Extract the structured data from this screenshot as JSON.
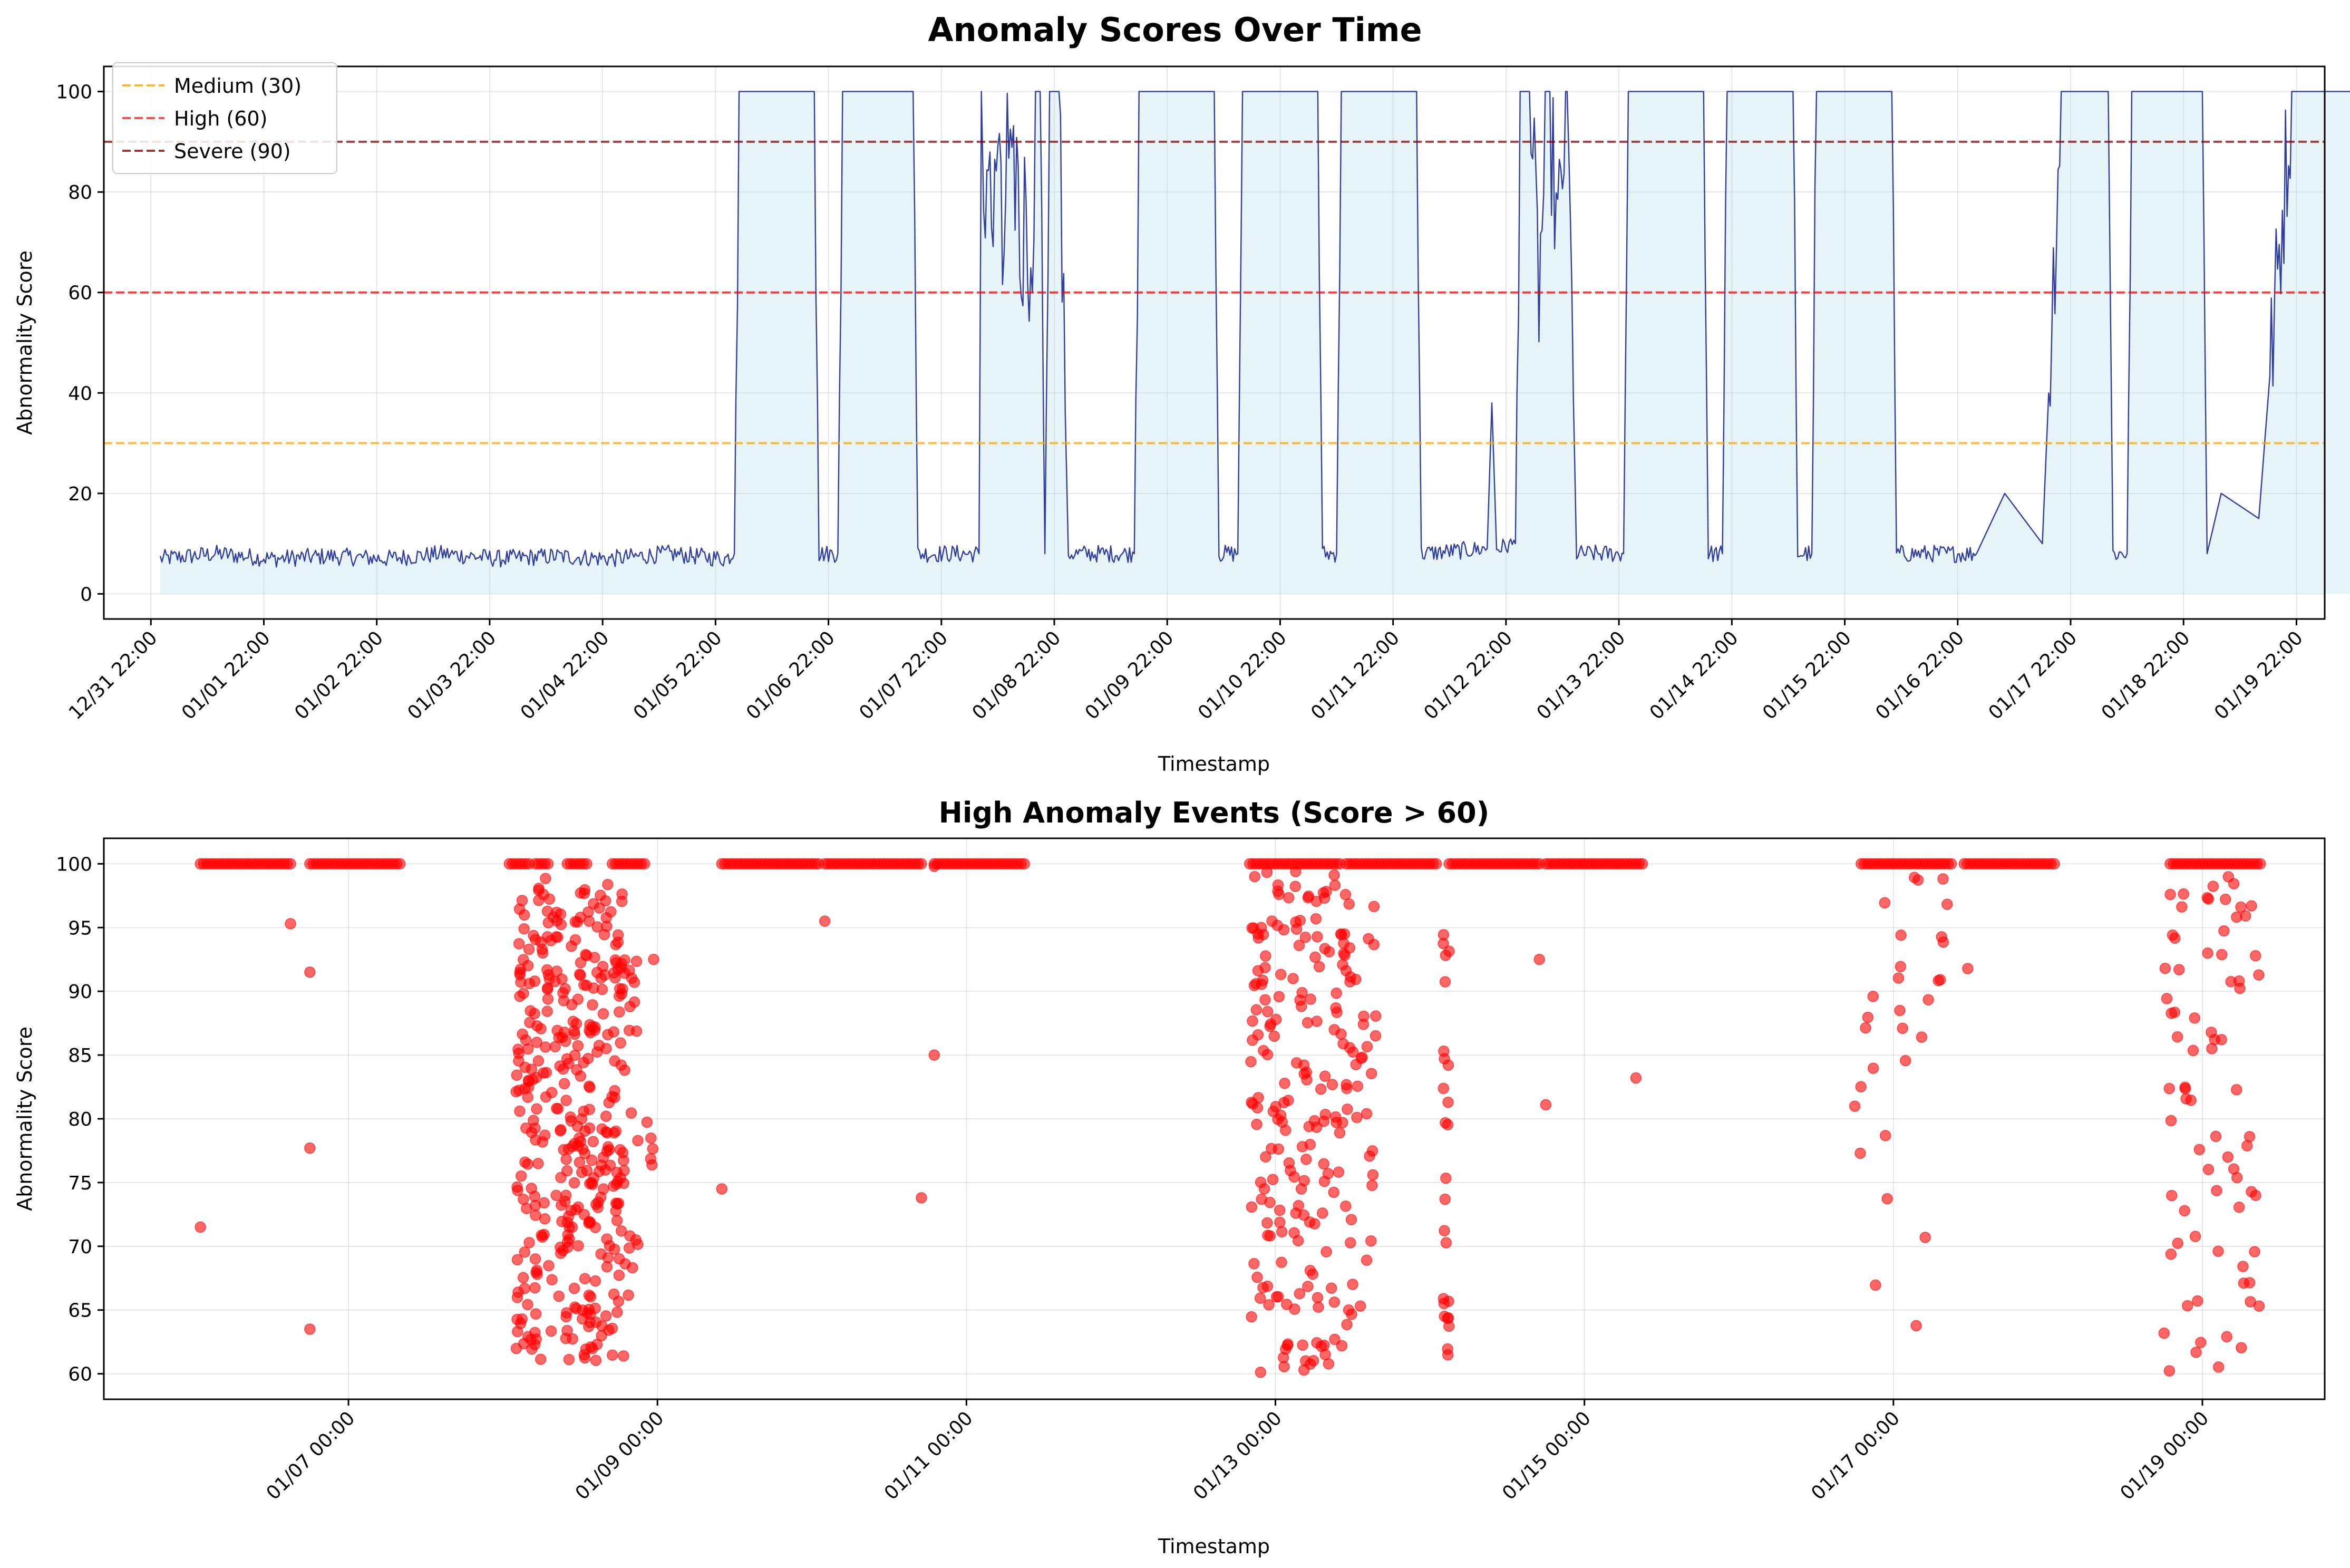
{
  "chart_data": [
    {
      "type": "line",
      "title": "Anomaly Scores Over Time",
      "xlabel": "Timestamp",
      "ylabel": "Abnormality Score",
      "x_range": [
        "2023-12-31 12:00",
        "2024-01-20 04:00"
      ],
      "ylim": [
        -5,
        105
      ],
      "y_ticks": [
        0,
        20,
        40,
        60,
        80,
        100
      ],
      "x_ticks": [
        {
          "t": "2023-12-31 22:00",
          "label": "12/31 22:00"
        },
        {
          "t": "2024-01-01 22:00",
          "label": "01/01 22:00"
        },
        {
          "t": "2024-01-02 22:00",
          "label": "01/02 22:00"
        },
        {
          "t": "2024-01-03 22:00",
          "label": "01/03 22:00"
        },
        {
          "t": "2024-01-04 22:00",
          "label": "01/04 22:00"
        },
        {
          "t": "2024-01-05 22:00",
          "label": "01/05 22:00"
        },
        {
          "t": "2024-01-06 22:00",
          "label": "01/06 22:00"
        },
        {
          "t": "2024-01-07 22:00",
          "label": "01/07 22:00"
        },
        {
          "t": "2024-01-08 22:00",
          "label": "01/08 22:00"
        },
        {
          "t": "2024-01-09 22:00",
          "label": "01/09 22:00"
        },
        {
          "t": "2024-01-10 22:00",
          "label": "01/10 22:00"
        },
        {
          "t": "2024-01-11 22:00",
          "label": "01/11 22:00"
        },
        {
          "t": "2024-01-12 22:00",
          "label": "01/12 22:00"
        },
        {
          "t": "2024-01-13 22:00",
          "label": "01/13 22:00"
        },
        {
          "t": "2024-01-14 22:00",
          "label": "01/14 22:00"
        },
        {
          "t": "2024-01-15 22:00",
          "label": "01/15 22:00"
        },
        {
          "t": "2024-01-16 22:00",
          "label": "01/16 22:00"
        },
        {
          "t": "2024-01-17 22:00",
          "label": "01/17 22:00"
        },
        {
          "t": "2024-01-18 22:00",
          "label": "01/18 22:00"
        },
        {
          "t": "2024-01-19 22:00",
          "label": "01/19 22:00"
        }
      ],
      "grid": true,
      "legend_position": "top-left",
      "series": [
        {
          "kind": "line-with-fill",
          "color": "#303f9f",
          "fill_color": "#add8e6",
          "points": [
            [
              "2024-01-01 00:00",
              7
            ],
            [
              "2024-01-01 12:00",
              8
            ],
            [
              "2024-01-02 00:00",
              7
            ],
            [
              "2024-01-02 12:00",
              7.5
            ],
            [
              "2024-01-03 00:00",
              7
            ],
            [
              "2024-01-03 12:00",
              8
            ],
            [
              "2024-01-04 00:00",
              7
            ],
            [
              "2024-01-04 12:00",
              7.5
            ],
            [
              "2024-01-05 00:00",
              7
            ],
            [
              "2024-01-05 12:00",
              8
            ],
            [
              "2024-01-06 00:00",
              7
            ],
            [
              "2024-01-06 02:00",
              8
            ],
            [
              "2024-01-06 03:00",
              100
            ],
            [
              "2024-01-06 19:00",
              100
            ],
            [
              "2024-01-06 20:00",
              8
            ],
            [
              "2024-01-07 00:00",
              8
            ],
            [
              "2024-01-07 01:00",
              100
            ],
            [
              "2024-01-07 16:00",
              100
            ],
            [
              "2024-01-07 17:00",
              8
            ],
            [
              "2024-01-08 06:00",
              8
            ],
            [
              "2024-01-08 06:30",
              100
            ],
            [
              "2024-01-08 07:00",
              65
            ],
            [
              "2024-01-08 08:00",
              95
            ],
            [
              "2024-01-08 09:00",
              70
            ],
            [
              "2024-01-08 10:00",
              92
            ],
            [
              "2024-01-08 11:00",
              62
            ],
            [
              "2024-01-08 12:00",
              90
            ],
            [
              "2024-01-08 13:00",
              75
            ],
            [
              "2024-01-08 14:00",
              88
            ],
            [
              "2024-01-08 15:00",
              60
            ],
            [
              "2024-01-08 16:00",
              85
            ],
            [
              "2024-01-08 17:00",
              55
            ],
            [
              "2024-01-08 18:00",
              100
            ],
            [
              "2024-01-08 19:00",
              100
            ],
            [
              "2024-01-08 20:00",
              8
            ],
            [
              "2024-01-08 21:00",
              100
            ],
            [
              "2024-01-08 23:00",
              100
            ],
            [
              "2024-01-09 00:00",
              50
            ],
            [
              "2024-01-09 01:00",
              8
            ],
            [
              "2024-01-09 15:00",
              8
            ],
            [
              "2024-01-09 16:00",
              100
            ],
            [
              "2024-01-10 08:00",
              100
            ],
            [
              "2024-01-10 09:00",
              8
            ],
            [
              "2024-01-10 13:00",
              8
            ],
            [
              "2024-01-10 14:00",
              100
            ],
            [
              "2024-01-11 06:00",
              100
            ],
            [
              "2024-01-11 07:00",
              8
            ],
            [
              "2024-01-11 10:00",
              8
            ],
            [
              "2024-01-11 11:00",
              100
            ],
            [
              "2024-01-12 03:00",
              100
            ],
            [
              "2024-01-12 04:00",
              8
            ],
            [
              "2024-01-12 18:00",
              9
            ],
            [
              "2024-01-12 19:00",
              38
            ],
            [
              "2024-01-12 20:00",
              9
            ],
            [
              "2024-01-13 00:00",
              10
            ],
            [
              "2024-01-13 01:00",
              100
            ],
            [
              "2024-01-13 03:00",
              100
            ],
            [
              "2024-01-13 05:00",
              60
            ],
            [
              "2024-01-13 07:00",
              100
            ],
            [
              "2024-01-13 09:00",
              70
            ],
            [
              "2024-01-13 11:00",
              100
            ],
            [
              "2024-01-13 13:00",
              8
            ],
            [
              "2024-01-13 23:00",
              8
            ],
            [
              "2024-01-14 00:00",
              100
            ],
            [
              "2024-01-14 16:00",
              100
            ],
            [
              "2024-01-14 17:00",
              8
            ],
            [
              "2024-01-14 20:00",
              8
            ],
            [
              "2024-01-14 21:00",
              100
            ],
            [
              "2024-01-15 11:00",
              100
            ],
            [
              "2024-01-15 12:00",
              8
            ],
            [
              "2024-01-15 15:00",
              8
            ],
            [
              "2024-01-15 16:00",
              100
            ],
            [
              "2024-01-16 08:00",
              100
            ],
            [
              "2024-01-16 09:00",
              8
            ],
            [
              "2024-01-17 02:00",
              8
            ],
            [
              "2024-01-17 08:00",
              20
            ],
            [
              "2024-01-17 16:00",
              10
            ],
            [
              "2024-01-17 20:00",
              100
            ],
            [
              "2024-01-18 01:00",
              100
            ],
            [
              "2024-01-18 06:00",
              100
            ],
            [
              "2024-01-18 07:00",
              8
            ],
            [
              "2024-01-18 10:00",
              8
            ],
            [
              "2024-01-18 11:00",
              100
            ],
            [
              "2024-01-19 02:00",
              100
            ],
            [
              "2024-01-19 03:00",
              8
            ],
            [
              "2024-01-19 06:00",
              20
            ],
            [
              "2024-01-19 14:00",
              15
            ],
            [
              "2024-01-19 21:00",
              100
            ],
            [
              "2024-01-20 00:00",
              100
            ],
            [
              "2024-01-20 12:00",
              100
            ],
            [
              "2024-01-20 13:00",
              12
            ]
          ]
        }
      ],
      "thresholds": [
        {
          "label": "Medium (30)",
          "value": 30,
          "color": "#ffa500"
        },
        {
          "label": "High (60)",
          "value": 60,
          "color": "#ff0000"
        },
        {
          "label": "Severe (90)",
          "value": 90,
          "color": "#8b0000"
        }
      ]
    },
    {
      "type": "scatter",
      "title": "High Anomaly Events (Score > 60)",
      "xlabel": "Timestamp",
      "ylabel": "Abnormality Score",
      "x_range": [
        "2024-01-05 10:00",
        "2024-01-19 19:00"
      ],
      "ylim": [
        58,
        102
      ],
      "y_ticks": [
        60,
        65,
        70,
        75,
        80,
        85,
        90,
        95,
        100
      ],
      "x_ticks": [
        {
          "t": "2024-01-07 00:00",
          "label": "01/07 00:00"
        },
        {
          "t": "2024-01-09 00:00",
          "label": "01/09 00:00"
        },
        {
          "t": "2024-01-11 00:00",
          "label": "01/11 00:00"
        },
        {
          "t": "2024-01-13 00:00",
          "label": "01/13 00:00"
        },
        {
          "t": "2024-01-15 00:00",
          "label": "01/15 00:00"
        },
        {
          "t": "2024-01-17 00:00",
          "label": "01/17 00:00"
        },
        {
          "t": "2024-01-19 00:00",
          "label": "01/19 00:00"
        }
      ],
      "grid": true,
      "marker_color": "#ff0000",
      "saturated_runs": [
        [
          "2024-01-06 01:00",
          "2024-01-06 15:00"
        ],
        [
          "2024-01-06 18:00",
          "2024-01-07 08:00"
        ],
        [
          "2024-01-08 01:00",
          "2024-01-08 04:00"
        ],
        [
          "2024-01-08 05:00",
          "2024-01-08 07:00"
        ],
        [
          "2024-01-08 10:00",
          "2024-01-08 13:00"
        ],
        [
          "2024-01-08 17:00",
          "2024-01-08 22:00"
        ],
        [
          "2024-01-09 10:00",
          "2024-01-10 01:00"
        ],
        [
          "2024-01-10 02:00",
          "2024-01-10 17:00"
        ],
        [
          "2024-01-10 19:00",
          "2024-01-11 09:00"
        ],
        [
          "2024-01-12 20:00",
          "2024-01-13 10:00"
        ],
        [
          "2024-01-13 11:00",
          "2024-01-14 01:00"
        ],
        [
          "2024-01-14 03:00",
          "2024-01-14 17:00"
        ],
        [
          "2024-01-14 18:00",
          "2024-01-15 09:00"
        ],
        [
          "2024-01-16 19:00",
          "2024-01-17 09:00"
        ],
        [
          "2024-01-17 11:00",
          "2024-01-18 01:00"
        ],
        [
          "2024-01-18 19:00",
          "2024-01-19 09:00"
        ]
      ],
      "clusters": [
        {
          "t0": "2024-01-08 02:00",
          "t1": "2024-01-08 19:00",
          "ymin": 61,
          "ymax": 99,
          "n": 380
        },
        {
          "t0": "2024-01-08 19:00",
          "t1": "2024-01-08 23:30",
          "ymin": 66,
          "ymax": 96,
          "n": 22
        },
        {
          "t0": "2024-01-12 20:00",
          "t1": "2024-01-13 12:00",
          "ymin": 60,
          "ymax": 99.5,
          "n": 200
        },
        {
          "t0": "2024-01-13 12:00",
          "t1": "2024-01-13 16:00",
          "ymin": 61,
          "ymax": 98,
          "n": 25
        },
        {
          "t0": "2024-01-14 02:00",
          "t1": "2024-01-14 03:00",
          "ymin": 60,
          "ymax": 99,
          "n": 25
        },
        {
          "t0": "2024-01-16 18:00",
          "t1": "2024-01-17 12:00",
          "ymin": 63,
          "ymax": 99,
          "n": 30
        },
        {
          "t0": "2024-01-18 18:00",
          "t1": "2024-01-19 09:00",
          "ymin": 60,
          "ymax": 99,
          "n": 75
        }
      ],
      "isolated_points": [
        [
          "2024-01-06 01:00",
          71.5
        ],
        [
          "2024-01-06 15:00",
          95.3
        ],
        [
          "2024-01-06 18:00",
          91.5
        ],
        [
          "2024-01-06 18:00",
          77.7
        ],
        [
          "2024-01-06 18:00",
          63.5
        ],
        [
          "2024-01-09 10:00",
          74.5
        ],
        [
          "2024-01-10 02:00",
          95.5
        ],
        [
          "2024-01-10 17:00",
          73.8
        ],
        [
          "2024-01-10 19:00",
          85
        ],
        [
          "2024-01-10 19:00",
          99.8
        ],
        [
          "2024-01-14 17:00",
          92.5
        ],
        [
          "2024-01-14 18:00",
          81.1
        ],
        [
          "2024-01-15 08:00",
          83.2
        ]
      ]
    }
  ]
}
